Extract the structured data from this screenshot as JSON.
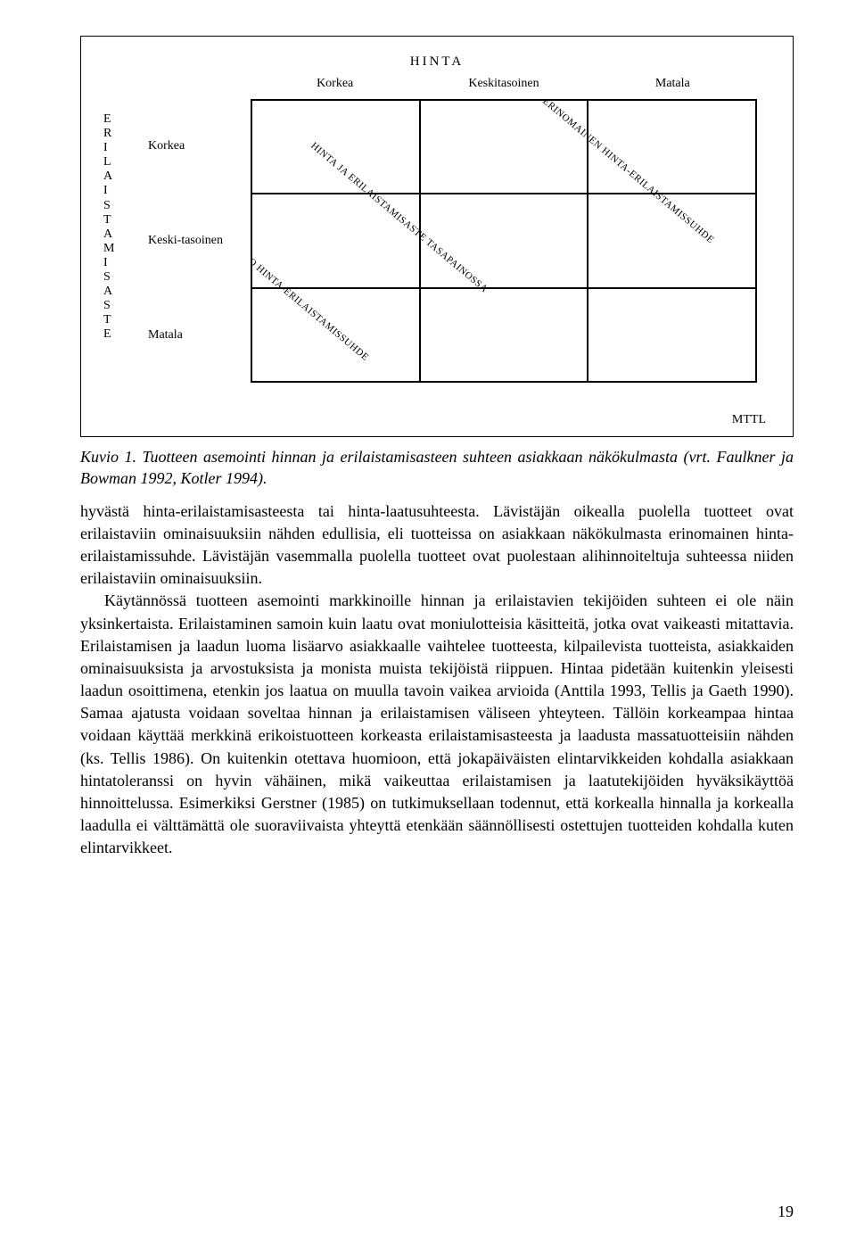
{
  "figure": {
    "x_axis_title": "HINTA",
    "x_labels": [
      "Korkea",
      "Keskitasoinen",
      "Matala"
    ],
    "y_axis_title": "ERILAISTAMISASTE",
    "y_labels": [
      "Korkea",
      "Keski-tasoinen",
      "Matala"
    ],
    "diagonals": {
      "top": "ERINOMAINEN HINTA-ERILAISTAMISSUHDE",
      "middle": "HINTA JA ERILAISTAMISASTE TASAPAINOSSA",
      "bottom": "HUONO HINTA-ERILAISTAMISSUHDE"
    },
    "source": "MTTL"
  },
  "caption": {
    "label": "Kuvio 1.",
    "text": "Tuotteen asemointi hinnan ja erilaistamisasteen suhteen asiakkaan näkökulmasta (vrt. Faulkner ja Bowman 1992, Kotler 1994)."
  },
  "paragraphs": {
    "p1": "hyvästä hinta-erilaistamisasteesta tai hinta-laatusuhteesta. Lävistäjän oikealla puolella tuotteet ovat erilaistaviin ominaisuuksiin nähden edullisia, eli tuotteissa on asiakkaan näkökulmasta erinomainen hinta-erilaistamissuhde. Lävistäjän vasemmalla puolella tuotteet ovat puolestaan alihinnoiteltuja suhteessa niiden erilaistaviin ominaisuuksiin.",
    "p2": "Käytännössä tuotteen asemointi markkinoille hinnan ja erilaistavien tekijöiden suhteen ei ole näin yksinkertaista. Erilaistaminen samoin kuin laatu ovat moniulotteisia käsitteitä, jotka ovat vaikeasti mitattavia. Erilaistamisen ja laadun luoma lisäarvo asiakkaalle vaihtelee tuotteesta, kilpailevista tuotteista, asiakkaiden ominaisuuksista ja arvostuksista ja monista muista tekijöistä riippuen. Hintaa pidetään kuitenkin yleisesti laadun osoittimena, etenkin jos laatua on muulla tavoin vaikea arvioida (Anttila 1993, Tellis ja Gaeth 1990). Samaa ajatusta voidaan soveltaa hinnan ja erilaistamisen väliseen yhteyteen. Tällöin korkeampaa hintaa voidaan käyttää merkkinä erikoistuotteen korkeasta erilaistamisasteesta ja laadusta massatuotteisiin nähden (ks. Tellis 1986). On kuitenkin otettava huomioon, että jokapäiväisten elintarvikkeiden kohdalla asiakkaan hintatoleranssi on hyvin vähäinen, mikä vaikeuttaa erilaistamisen ja laatutekijöiden hyväksikäyttöä hinnoittelussa. Esimerkiksi Gerstner (1985) on tutkimuksellaan todennut, että korkealla hinnalla ja korkealla laadulla ei välttämättä ole suoraviivaista yhteyttä etenkään säännöllisesti ostettujen tuotteiden kohdalla kuten elintarvikkeet."
  },
  "page_number": "19"
}
